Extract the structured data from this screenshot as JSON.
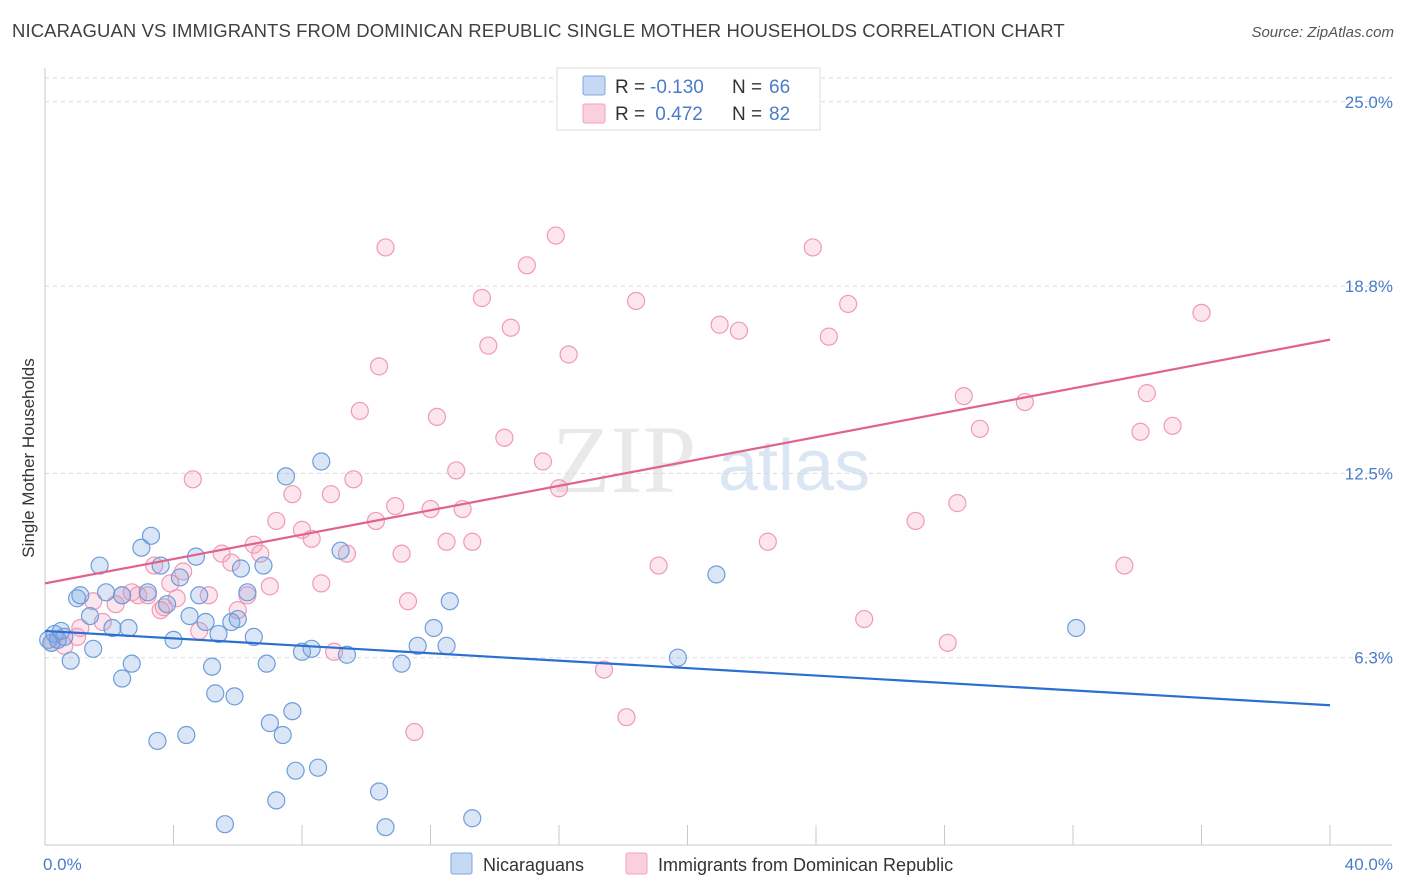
{
  "title": "NICARAGUAN VS IMMIGRANTS FROM DOMINICAN REPUBLIC SINGLE MOTHER HOUSEHOLDS CORRELATION CHART",
  "source": "Source: ZipAtlas.com",
  "watermark": {
    "zip": "ZIP",
    "atlas": "atlas"
  },
  "legend": {
    "rows": [
      {
        "r_label": "R = ",
        "r_value": "-0.130",
        "n_label": "N = ",
        "n_value": "66"
      },
      {
        "r_label": "R = ",
        "r_value": " 0.472",
        "n_label": "N = ",
        "n_value": "82"
      }
    ]
  },
  "chart_data": {
    "type": "scatter",
    "title": "NICARAGUAN VS IMMIGRANTS FROM DOMINICAN REPUBLIC SINGLE MOTHER HOUSEHOLDS CORRELATION CHART",
    "ylabel": "Single Mother Households",
    "xlabel": "",
    "xlim": [
      0,
      40
    ],
    "ylim": [
      0,
      25.8
    ],
    "x_tick_labels": [
      {
        "value": 0,
        "label": "0.0%"
      },
      {
        "value": 40,
        "label": "40.0%"
      }
    ],
    "y_tick_labels": [
      {
        "value": 6.3,
        "label": "6.3%"
      },
      {
        "value": 12.5,
        "label": "12.5%"
      },
      {
        "value": 18.8,
        "label": "18.8%"
      },
      {
        "value": 25.0,
        "label": "25.0%"
      }
    ],
    "x_minor_ticks": [
      0,
      4,
      8,
      12,
      16,
      20,
      24,
      28,
      32,
      36,
      40
    ],
    "grid": "horizontal-dashed",
    "legend_position": "top-center",
    "series": [
      {
        "name": "Nicaraguans",
        "color": "#7ba7e0",
        "line_color": "#2b6fd1",
        "r": -0.13,
        "n": 66,
        "trend": {
          "x": [
            0,
            40
          ],
          "y": [
            7.2,
            4.7
          ]
        },
        "points": [
          [
            0.1,
            6.9
          ],
          [
            0.2,
            6.8
          ],
          [
            0.3,
            7.1
          ],
          [
            0.4,
            6.9
          ],
          [
            0.5,
            7.2
          ],
          [
            0.6,
            7.0
          ],
          [
            0.8,
            6.2
          ],
          [
            1.0,
            8.3
          ],
          [
            1.1,
            8.4
          ],
          [
            1.4,
            7.7
          ],
          [
            1.5,
            6.6
          ],
          [
            1.7,
            9.4
          ],
          [
            1.9,
            8.5
          ],
          [
            2.1,
            7.3
          ],
          [
            2.4,
            8.4
          ],
          [
            2.4,
            5.6
          ],
          [
            2.6,
            7.3
          ],
          [
            2.7,
            6.1
          ],
          [
            3.0,
            10.0
          ],
          [
            3.2,
            8.5
          ],
          [
            3.3,
            10.4
          ],
          [
            3.5,
            3.5
          ],
          [
            3.6,
            9.4
          ],
          [
            3.8,
            8.1
          ],
          [
            4.0,
            6.9
          ],
          [
            4.2,
            9.0
          ],
          [
            4.4,
            3.7
          ],
          [
            4.5,
            7.7
          ],
          [
            4.7,
            9.7
          ],
          [
            4.8,
            8.4
          ],
          [
            5.0,
            7.5
          ],
          [
            5.2,
            6.0
          ],
          [
            5.3,
            5.1
          ],
          [
            5.4,
            7.1
          ],
          [
            5.6,
            0.7
          ],
          [
            5.8,
            7.5
          ],
          [
            5.9,
            5.0
          ],
          [
            6.0,
            7.6
          ],
          [
            6.1,
            9.3
          ],
          [
            6.3,
            8.5
          ],
          [
            6.5,
            7.0
          ],
          [
            6.8,
            9.4
          ],
          [
            6.9,
            6.1
          ],
          [
            7.0,
            4.1
          ],
          [
            7.2,
            1.5
          ],
          [
            7.4,
            3.7
          ],
          [
            7.5,
            12.4
          ],
          [
            7.7,
            4.5
          ],
          [
            7.8,
            2.5
          ],
          [
            8.0,
            6.5
          ],
          [
            8.3,
            6.6
          ],
          [
            8.5,
            2.6
          ],
          [
            8.6,
            12.9
          ],
          [
            9.2,
            9.9
          ],
          [
            9.4,
            6.4
          ],
          [
            10.4,
            1.8
          ],
          [
            10.6,
            0.6
          ],
          [
            11.1,
            6.1
          ],
          [
            11.6,
            6.7
          ],
          [
            12.1,
            7.3
          ],
          [
            12.5,
            6.7
          ],
          [
            12.6,
            8.2
          ],
          [
            13.3,
            0.9
          ],
          [
            19.7,
            6.3
          ],
          [
            20.9,
            9.1
          ],
          [
            32.1,
            7.3
          ]
        ]
      },
      {
        "name": "Immigrants from Dominican Republic",
        "color": "#f3a3bd",
        "line_color": "#e0638d",
        "r": 0.472,
        "n": 82,
        "trend": {
          "x": [
            0,
            40
          ],
          "y": [
            8.8,
            17.0
          ]
        },
        "points": [
          [
            0.2,
            6.8
          ],
          [
            0.4,
            6.9
          ],
          [
            0.6,
            6.7
          ],
          [
            1.0,
            7.0
          ],
          [
            1.1,
            7.3
          ],
          [
            1.5,
            8.2
          ],
          [
            1.8,
            7.5
          ],
          [
            2.2,
            8.1
          ],
          [
            2.4,
            8.4
          ],
          [
            2.7,
            8.5
          ],
          [
            2.9,
            8.4
          ],
          [
            3.2,
            8.4
          ],
          [
            3.4,
            9.4
          ],
          [
            3.6,
            7.9
          ],
          [
            3.7,
            8.0
          ],
          [
            3.9,
            8.8
          ],
          [
            4.1,
            8.3
          ],
          [
            4.3,
            9.2
          ],
          [
            4.6,
            12.3
          ],
          [
            4.8,
            7.2
          ],
          [
            5.1,
            8.4
          ],
          [
            5.5,
            9.8
          ],
          [
            5.8,
            9.5
          ],
          [
            6.0,
            7.9
          ],
          [
            6.3,
            8.4
          ],
          [
            6.5,
            10.1
          ],
          [
            6.7,
            9.8
          ],
          [
            7.0,
            8.7
          ],
          [
            7.2,
            10.9
          ],
          [
            7.7,
            11.8
          ],
          [
            8.0,
            10.6
          ],
          [
            8.3,
            10.3
          ],
          [
            8.6,
            8.8
          ],
          [
            8.9,
            11.8
          ],
          [
            9.0,
            6.5
          ],
          [
            9.4,
            9.8
          ],
          [
            9.6,
            12.3
          ],
          [
            9.8,
            14.6
          ],
          [
            10.3,
            10.9
          ],
          [
            10.4,
            16.1
          ],
          [
            10.6,
            20.1
          ],
          [
            10.9,
            11.4
          ],
          [
            11.1,
            9.8
          ],
          [
            11.3,
            8.2
          ],
          [
            11.5,
            3.8
          ],
          [
            12.0,
            11.3
          ],
          [
            12.2,
            14.4
          ],
          [
            12.5,
            10.2
          ],
          [
            12.8,
            12.6
          ],
          [
            13.0,
            11.3
          ],
          [
            13.3,
            10.2
          ],
          [
            13.6,
            18.4
          ],
          [
            13.8,
            16.8
          ],
          [
            14.3,
            13.7
          ],
          [
            14.5,
            17.4
          ],
          [
            15.0,
            19.5
          ],
          [
            15.5,
            12.9
          ],
          [
            15.9,
            20.5
          ],
          [
            16.0,
            12.0
          ],
          [
            16.3,
            16.5
          ],
          [
            17.4,
            5.9
          ],
          [
            18.1,
            4.3
          ],
          [
            18.4,
            18.3
          ],
          [
            19.1,
            9.4
          ],
          [
            21.0,
            17.5
          ],
          [
            21.6,
            17.3
          ],
          [
            22.5,
            10.2
          ],
          [
            23.9,
            20.1
          ],
          [
            24.4,
            17.1
          ],
          [
            25.0,
            18.2
          ],
          [
            25.5,
            7.6
          ],
          [
            27.1,
            10.9
          ],
          [
            28.1,
            6.8
          ],
          [
            28.4,
            11.5
          ],
          [
            28.6,
            15.1
          ],
          [
            29.1,
            14.0
          ],
          [
            30.5,
            14.9
          ],
          [
            33.6,
            9.4
          ],
          [
            34.1,
            13.9
          ],
          [
            34.3,
            15.2
          ],
          [
            35.1,
            14.1
          ],
          [
            36.0,
            17.9
          ]
        ]
      }
    ]
  }
}
